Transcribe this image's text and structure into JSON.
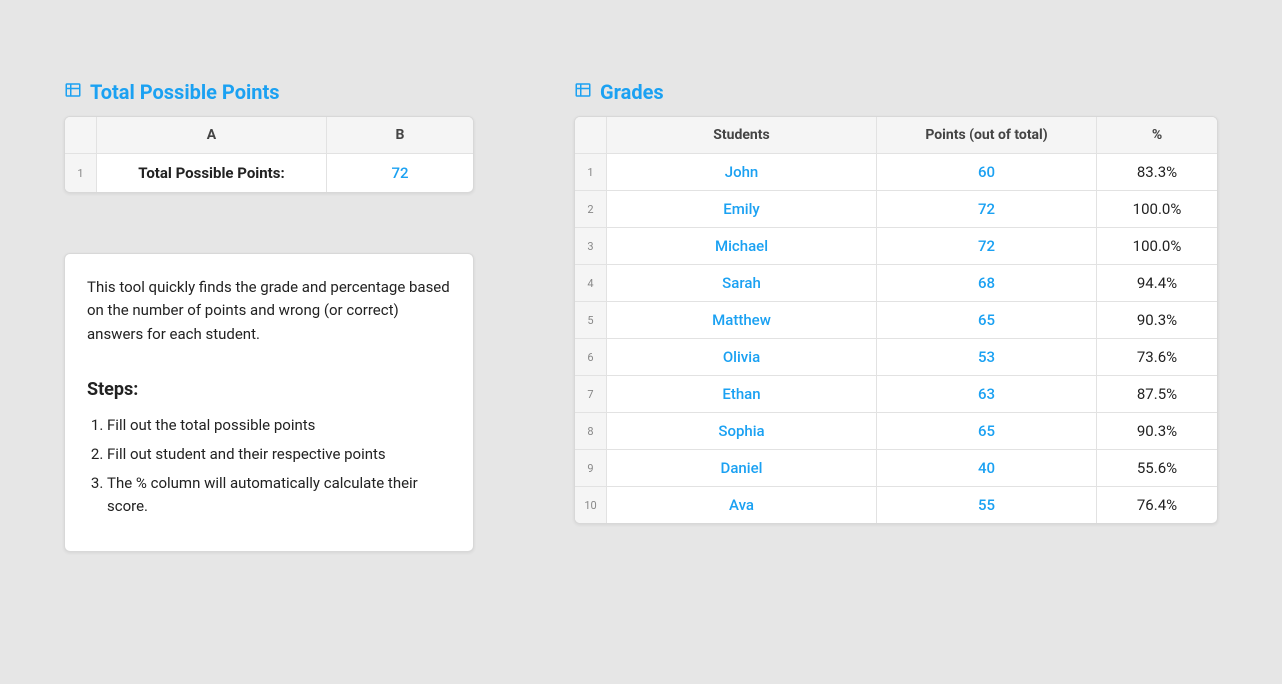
{
  "colors": {
    "accent": "#1ba1f2",
    "background": "#e6e6e6",
    "panel": "#ffffff",
    "border": "#d8d8d8",
    "row_border": "#e2e2e2",
    "header_bg": "#f5f5f5"
  },
  "totals_panel": {
    "title": "Total Possible Points",
    "columns": {
      "a": "A",
      "b": "B"
    },
    "row_label": "Total Possible Points:",
    "value": "72",
    "row_index": "1"
  },
  "info": {
    "intro": "This tool quickly finds the grade and percentage based on the number of points and wrong (or correct) answers for each student.",
    "steps_heading": "Steps:",
    "steps": [
      "Fill out the total possible points",
      "Fill out student and their respective points",
      "The % column will automatically calculate their score."
    ]
  },
  "grades_panel": {
    "title": "Grades",
    "columns": {
      "students": "Students",
      "points": "Points (out of total)",
      "percent": "%"
    },
    "rows": [
      {
        "idx": "1",
        "name": "John",
        "points": "60",
        "percent": "83.3%"
      },
      {
        "idx": "2",
        "name": "Emily",
        "points": "72",
        "percent": "100.0%"
      },
      {
        "idx": "3",
        "name": "Michael",
        "points": "72",
        "percent": "100.0%"
      },
      {
        "idx": "4",
        "name": "Sarah",
        "points": "68",
        "percent": "94.4%"
      },
      {
        "idx": "5",
        "name": "Matthew",
        "points": "65",
        "percent": "90.3%"
      },
      {
        "idx": "6",
        "name": "Olivia",
        "points": "53",
        "percent": "73.6%"
      },
      {
        "idx": "7",
        "name": "Ethan",
        "points": "63",
        "percent": "87.5%"
      },
      {
        "idx": "8",
        "name": "Sophia",
        "points": "65",
        "percent": "90.3%"
      },
      {
        "idx": "9",
        "name": "Daniel",
        "points": "40",
        "percent": "55.6%"
      },
      {
        "idx": "10",
        "name": "Ava",
        "points": "55",
        "percent": "76.4%"
      }
    ]
  }
}
